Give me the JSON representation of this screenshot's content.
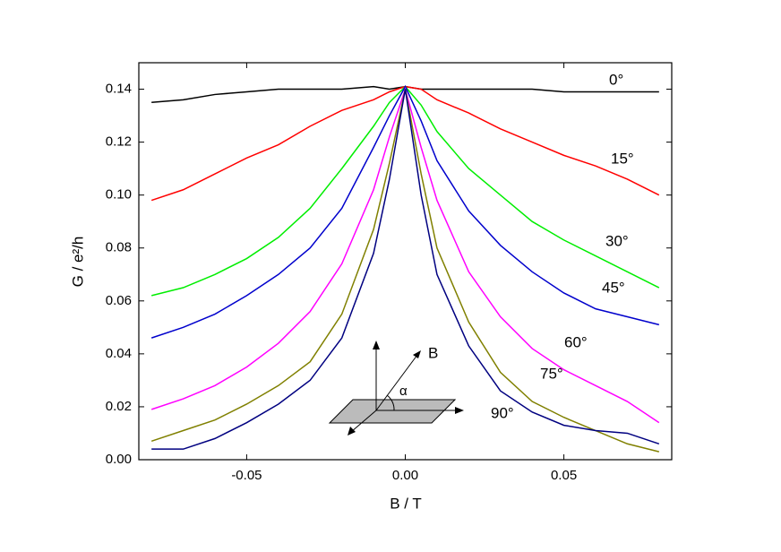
{
  "chart_data": {
    "type": "line",
    "x_label": "B / T",
    "y_label": "G / e²/h",
    "x": [
      -0.08,
      -0.07,
      -0.06,
      -0.05,
      -0.04,
      -0.03,
      -0.02,
      -0.01,
      -0.005,
      0,
      0.005,
      0.01,
      0.02,
      0.03,
      0.04,
      0.05,
      0.06,
      0.07,
      0.08
    ],
    "series": [
      {
        "name": "0°",
        "color": "#000000",
        "values": [
          0.135,
          0.136,
          0.138,
          0.139,
          0.14,
          0.14,
          0.14,
          0.141,
          0.14,
          0.141,
          0.14,
          0.14,
          0.14,
          0.14,
          0.14,
          0.139,
          0.139,
          0.139,
          0.139
        ]
      },
      {
        "name": "15°",
        "color": "#ff0000",
        "values": [
          0.098,
          0.102,
          0.108,
          0.114,
          0.119,
          0.126,
          0.132,
          0.136,
          0.139,
          0.141,
          0.14,
          0.136,
          0.131,
          0.125,
          0.12,
          0.115,
          0.111,
          0.106,
          0.1
        ]
      },
      {
        "name": "30°",
        "color": "#00ee00",
        "values": [
          0.062,
          0.065,
          0.07,
          0.076,
          0.084,
          0.095,
          0.11,
          0.126,
          0.135,
          0.141,
          0.134,
          0.124,
          0.11,
          0.1,
          0.09,
          0.083,
          0.077,
          0.071,
          0.065
        ]
      },
      {
        "name": "45°",
        "color": "#0000cc",
        "values": [
          0.046,
          0.05,
          0.055,
          0.062,
          0.07,
          0.08,
          0.095,
          0.118,
          0.13,
          0.141,
          0.128,
          0.113,
          0.094,
          0.081,
          0.071,
          0.063,
          0.057,
          0.054,
          0.051
        ]
      },
      {
        "name": "60°",
        "color": "#ff00ff",
        "values": [
          0.019,
          0.023,
          0.028,
          0.035,
          0.044,
          0.056,
          0.074,
          0.102,
          0.122,
          0.14,
          0.118,
          0.098,
          0.071,
          0.054,
          0.042,
          0.034,
          0.028,
          0.022,
          0.014
        ]
      },
      {
        "name": "75°",
        "color": "#808000",
        "values": [
          0.007,
          0.011,
          0.015,
          0.021,
          0.028,
          0.037,
          0.055,
          0.087,
          0.112,
          0.14,
          0.108,
          0.08,
          0.052,
          0.033,
          0.022,
          0.016,
          0.011,
          0.006,
          0.003
        ]
      },
      {
        "name": "90°",
        "color": "#000080",
        "values": [
          0.004,
          0.004,
          0.008,
          0.014,
          0.021,
          0.03,
          0.046,
          0.078,
          0.106,
          0.14,
          0.1,
          0.07,
          0.043,
          0.026,
          0.018,
          0.013,
          0.011,
          0.01,
          0.006
        ]
      }
    ],
    "xlim": [
      -0.084,
      0.084
    ],
    "ylim": [
      0,
      0.15
    ],
    "xticks": [
      -0.05,
      {
        "value": 0,
        "label": "0.00"
      },
      0.05
    ],
    "yticks": [
      {
        "value": 0,
        "label": "0.00"
      },
      0.02,
      0.04,
      0.06,
      0.08,
      {
        "value": 0.1,
        "label": "0.10"
      },
      0.12,
      0.14
    ],
    "grid": false,
    "inset": {
      "field_label": "B",
      "angle_label": "α"
    }
  }
}
